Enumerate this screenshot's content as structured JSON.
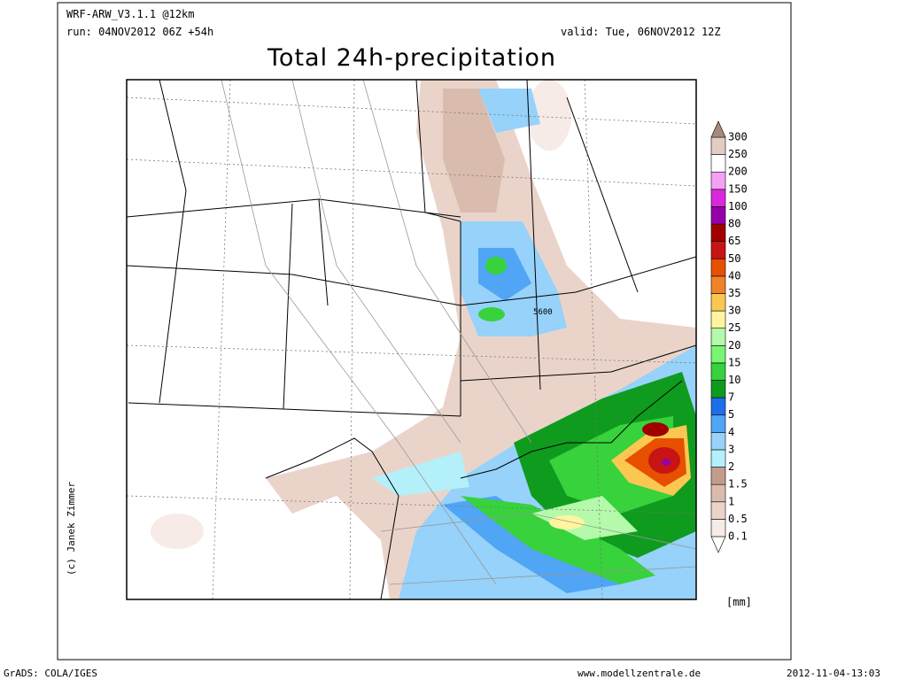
{
  "header": {
    "model": "WRF-ARW_V3.1.1 @12km",
    "run": "run: 04NOV2012 06Z +54h",
    "valid": "valid: Tue, 06NOV2012 12Z",
    "title": "Total 24h-precipitation"
  },
  "map": {
    "contour_label": "5600",
    "credit": "(c) Janek Zimmer"
  },
  "colorbar": {
    "labels": [
      "0.1",
      "0.5",
      "1",
      "1.5",
      "2",
      "3",
      "4",
      "5",
      "7",
      "10",
      "15",
      "20",
      "25",
      "30",
      "35",
      "40",
      "50",
      "65",
      "80",
      "100",
      "150",
      "200",
      "250",
      "300"
    ],
    "colors": [
      "#ffffff",
      "#f6ebe6",
      "#ead4ca",
      "#d9bcae",
      "#c49c8c",
      "#b4f0fa",
      "#96d2fa",
      "#50a5f5",
      "#1e6eeb",
      "#0f9b1e",
      "#37d23c",
      "#78f573",
      "#b4faaa",
      "#fff5a0",
      "#fac850",
      "#f08228",
      "#e65000",
      "#c81414",
      "#a00000",
      "#9600aa",
      "#dc28dc",
      "#f5a0f5",
      "#ffffff",
      "#e1cdc3",
      "#a88a7c"
    ],
    "unit": "[mm]"
  },
  "footer": {
    "software": "GrADS: COLA/IGES",
    "website": "www.modellzentrale.de",
    "timestamp": "2012-11-04-13:03"
  }
}
